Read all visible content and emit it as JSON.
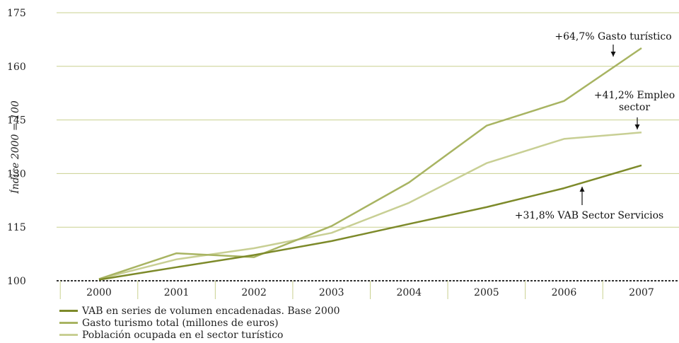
{
  "chart_data": {
    "type": "line",
    "title": "",
    "xlabel": "",
    "ylabel": "Índice 2000 = 100",
    "categories": [
      "2000",
      "2001",
      "2002",
      "2003",
      "2004",
      "2005",
      "2006",
      "2007"
    ],
    "ylim": [
      100,
      175
    ],
    "yticks": [
      "175",
      "160",
      "145",
      "130",
      "115",
      "100"
    ],
    "grid": true,
    "legend_position": "bottom-left",
    "series": [
      {
        "name": "VAB en series de volumen encadenadas. Base 2000",
        "color": "#7d8a2a",
        "values": [
          100.3,
          103.8,
          107.2,
          111.1,
          115.9,
          120.6,
          125.9,
          132.3
        ]
      },
      {
        "name": "Gasto turismo total (millones de euros)",
        "color": "#a8b462",
        "values": [
          100.5,
          107.7,
          106.6,
          115.3,
          127.5,
          143.4,
          150.3,
          165.1
        ]
      },
      {
        "name": "Población ocupada en el sector turístico",
        "color": "#c8cf94",
        "values": [
          100.5,
          106.0,
          109.1,
          113.4,
          121.8,
          132.9,
          139.7,
          141.5
        ]
      }
    ],
    "annotations": [
      {
        "label_lines": [
          "+64,7% Gasto turístico"
        ],
        "series": 1,
        "category": "2007",
        "arrow": "down"
      },
      {
        "label_lines": [
          "+41,2% Empleo",
          "sector"
        ],
        "series": 2,
        "category": "2007",
        "arrow": "down"
      },
      {
        "label_lines": [
          "+31,8% VAB Sector Servicios"
        ],
        "series": 0,
        "category": "2006",
        "arrow": "up"
      }
    ]
  }
}
